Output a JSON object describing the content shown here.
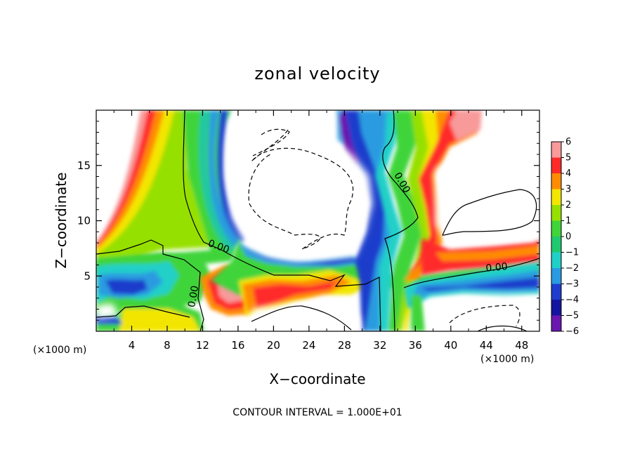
{
  "chart_data": {
    "type": "heatmap",
    "title": "zonal velocity",
    "xlabel": "X−coordinate",
    "ylabel": "Z−coordinate",
    "x_unit": "(×1000 m)",
    "y_unit": "(×1000 m)",
    "xlim": [
      0,
      50
    ],
    "ylim": [
      0,
      20
    ],
    "x_ticks": [
      4,
      8,
      12,
      16,
      20,
      24,
      28,
      32,
      36,
      40,
      44,
      48
    ],
    "y_ticks": [
      5,
      10,
      15
    ],
    "x_tick_labels": [
      "4",
      "8",
      "12",
      "16",
      "20",
      "24",
      "28",
      "32",
      "36",
      "40",
      "44",
      "48"
    ],
    "y_tick_labels": [
      "5",
      "10",
      "15"
    ],
    "colorbar": {
      "range": [
        -6,
        6
      ],
      "ticks": [
        6,
        5,
        4,
        3,
        2,
        1,
        0,
        -1,
        -2,
        -3,
        -4,
        -5,
        -6
      ],
      "tick_labels": [
        "6",
        "5",
        "4",
        "3",
        "2",
        "1",
        "0",
        "−1",
        "−2",
        "−3",
        "−4",
        "−5",
        "−6"
      ]
    },
    "contour_labels": [
      {
        "text": "0.00",
        "x": 13.7,
        "y": 7.4
      },
      {
        "text": "0.00",
        "x": 11.3,
        "y": 3.1
      },
      {
        "text": "0.00",
        "x": 34.2,
        "y": 13.3
      },
      {
        "text": "0.00",
        "x": 45.2,
        "y": 5.5
      }
    ],
    "footer": "CONTOUR INTERVAL = 1.000E+01"
  }
}
